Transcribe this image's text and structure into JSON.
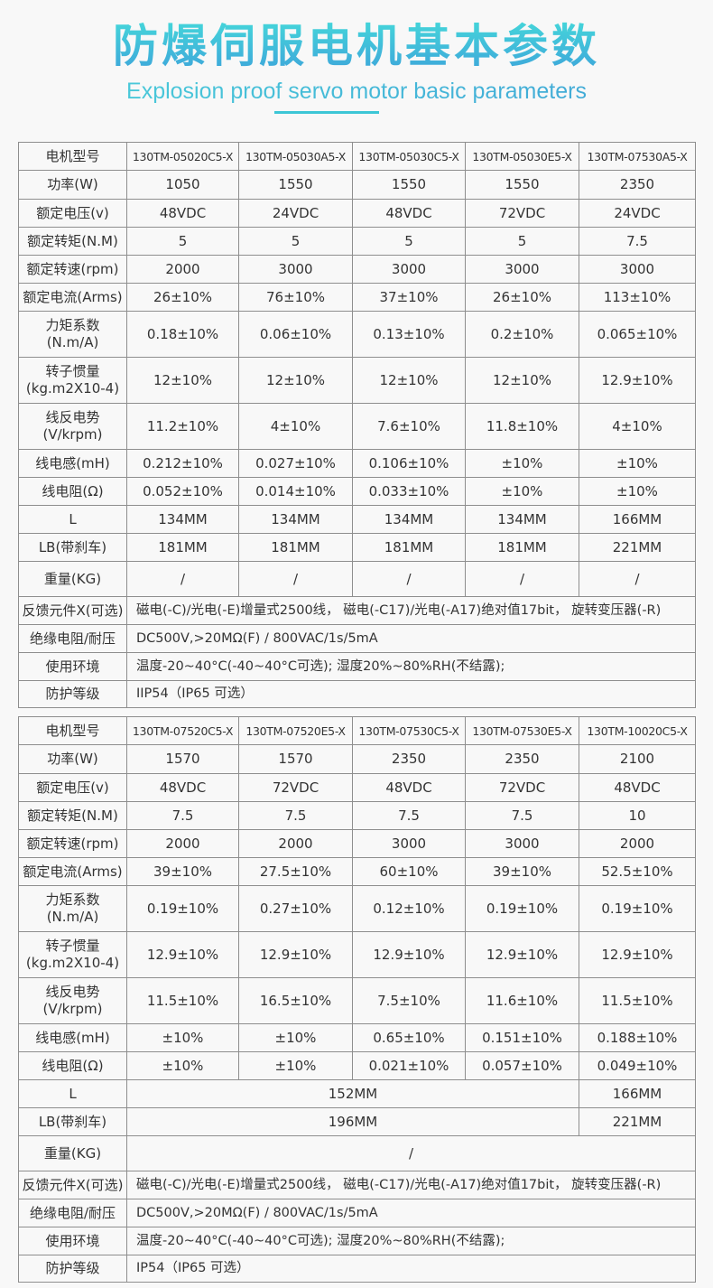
{
  "header": {
    "title": "防爆伺服电机基本参数",
    "subtitle": "Explosion proof servo motor basic parameters",
    "accent_color": "#3cc6d6"
  },
  "tables": [
    {
      "rows": [
        {
          "label": "电机型号",
          "cells": [
            "130TM-05020C5-X",
            "130TM-05030A5-X",
            "130TM-05030C5-X",
            "130TM-05030E5-X",
            "130TM-07530A5-X"
          ]
        },
        {
          "label": "功率(W)",
          "cells": [
            "1050",
            "1550",
            "1550",
            "1550",
            "2350"
          ]
        },
        {
          "label": "额定电压(v)",
          "cells": [
            "48VDC",
            "24VDC",
            "48VDC",
            "72VDC",
            "24VDC"
          ]
        },
        {
          "label": "额定转矩(N.M)",
          "cells": [
            "5",
            "5",
            "5",
            "5",
            "7.5"
          ]
        },
        {
          "label": "额定转速(rpm)",
          "cells": [
            "2000",
            "3000",
            "3000",
            "3000",
            "3000"
          ]
        },
        {
          "label": "额定电流(Arms)",
          "cells": [
            "26±10%",
            "76±10%",
            "37±10%",
            "26±10%",
            "113±10%"
          ]
        },
        {
          "label": "力矩系数\n(N.m/A)",
          "cells": [
            "0.18±10%",
            "0.06±10%",
            "0.13±10%",
            "0.2±10%",
            "0.065±10%"
          ]
        },
        {
          "label": "转子惯量\n(kg.m2X10-4)",
          "cells": [
            "12±10%",
            "12±10%",
            "12±10%",
            "12±10%",
            "12.9±10%"
          ]
        },
        {
          "label": "线反电势\n(V/krpm)",
          "cells": [
            "11.2±10%",
            "4±10%",
            "7.6±10%",
            "11.8±10%",
            "4±10%"
          ]
        },
        {
          "label": "线电感(mH)",
          "cells": [
            "0.212±10%",
            "0.027±10%",
            "0.106±10%",
            "±10%",
            "±10%"
          ]
        },
        {
          "label": "线电阻(Ω)",
          "cells": [
            "0.052±10%",
            "0.014±10%",
            "0.033±10%",
            "±10%",
            "±10%"
          ]
        },
        {
          "label": "L",
          "cells": [
            "134MM",
            "134MM",
            "134MM",
            "134MM",
            "166MM"
          ]
        },
        {
          "label": "LB(带刹车)",
          "cells": [
            "181MM",
            "181MM",
            "181MM",
            "181MM",
            "221MM"
          ]
        },
        {
          "label": "重量(KG)",
          "cells": [
            "/",
            "/",
            "/",
            "/",
            "/"
          ]
        },
        {
          "label": "反馈元件X(可选)",
          "cells": [
            "磁电(-C)/光电(-E)增量式2500线， 磁电(-C17)/光电(-A17)绝对值17bit， 旋转变压器(-R)"
          ]
        },
        {
          "label": "绝缘电阻/耐压",
          "cells": [
            "DC500V,>20MΩ(F) / 800VAC/1s/5mA"
          ]
        },
        {
          "label": "使用环境",
          "cells": [
            "温度-20~40°C(-40~40°C可选); 湿度20%~80%RH(不结露);"
          ]
        },
        {
          "label": "防护等级",
          "cells": [
            "IIP54（IP65 可选）"
          ]
        }
      ]
    },
    {
      "rows": [
        {
          "label": "电机型号",
          "cells": [
            "130TM-07520C5-X",
            "130TM-07520E5-X",
            "130TM-07530C5-X",
            "130TM-07530E5-X",
            "130TM-10020C5-X"
          ]
        },
        {
          "label": "功率(W)",
          "cells": [
            "1570",
            "1570",
            "2350",
            "2350",
            "2100"
          ]
        },
        {
          "label": "额定电压(v)",
          "cells": [
            "48VDC",
            "72VDC",
            "48VDC",
            "72VDC",
            "48VDC"
          ]
        },
        {
          "label": "额定转矩(N.M)",
          "cells": [
            "7.5",
            "7.5",
            "7.5",
            "7.5",
            "10"
          ]
        },
        {
          "label": "额定转速(rpm)",
          "cells": [
            "2000",
            "2000",
            "3000",
            "3000",
            "2000"
          ]
        },
        {
          "label": "额定电流(Arms)",
          "cells": [
            "39±10%",
            "27.5±10%",
            "60±10%",
            "39±10%",
            "52.5±10%"
          ]
        },
        {
          "label": "力矩系数\n(N.m/A)",
          "cells": [
            "0.19±10%",
            "0.27±10%",
            "0.12±10%",
            "0.19±10%",
            "0.19±10%"
          ]
        },
        {
          "label": "转子惯量\n(kg.m2X10-4)",
          "cells": [
            "12.9±10%",
            "12.9±10%",
            "12.9±10%",
            "12.9±10%",
            "12.9±10%"
          ]
        },
        {
          "label": "线反电势\n(V/krpm)",
          "cells": [
            "11.5±10%",
            "16.5±10%",
            "7.5±10%",
            "11.6±10%",
            "11.5±10%"
          ]
        },
        {
          "label": "线电感(mH)",
          "cells": [
            "±10%",
            "±10%",
            "0.65±10%",
            "0.151±10%",
            "0.188±10%"
          ]
        },
        {
          "label": "线电阻(Ω)",
          "cells": [
            "±10%",
            "±10%",
            "0.021±10%",
            "0.057±10%",
            "0.049±10%"
          ]
        },
        {
          "label": "L",
          "cells": [
            "152MM",
            "166MM"
          ]
        },
        {
          "label": "LB(带刹车)",
          "cells": [
            "196MM",
            "221MM"
          ]
        },
        {
          "label": "重量(KG)",
          "cells": [
            "/"
          ]
        },
        {
          "label": "反馈元件X(可选)",
          "cells": [
            "磁电(-C)/光电(-E)增量式2500线， 磁电(-C17)/光电(-A17)绝对值17bit， 旋转变压器(-R)"
          ]
        },
        {
          "label": "绝缘电阻/耐压",
          "cells": [
            "DC500V,>20MΩ(F) / 800VAC/1s/5mA"
          ]
        },
        {
          "label": "使用环境",
          "cells": [
            "温度-20~40°C(-40~40°C可选); 湿度20%~80%RH(不结露);"
          ]
        },
        {
          "label": "防护等级",
          "cells": [
            "IP54（IP65 可选）"
          ]
        }
      ]
    }
  ]
}
